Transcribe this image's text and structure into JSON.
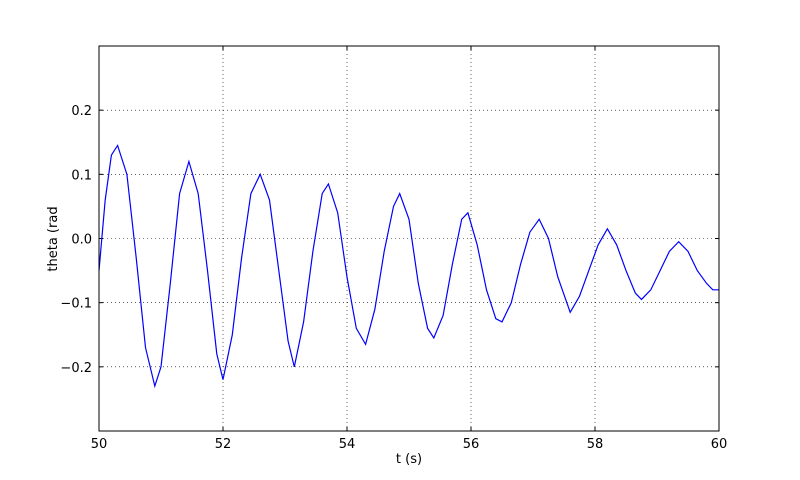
{
  "chart_data": {
    "type": "line",
    "xlabel": "t (s)",
    "ylabel": "theta (rad",
    "x": [
      50.0,
      50.1,
      50.2,
      50.3,
      50.45,
      50.6,
      50.75,
      50.9,
      51.0,
      51.15,
      51.3,
      51.45,
      51.6,
      51.75,
      51.9,
      52.0,
      52.15,
      52.3,
      52.45,
      52.6,
      52.75,
      52.9,
      53.05,
      53.15,
      53.3,
      53.45,
      53.6,
      53.7,
      53.85,
      54.0,
      54.15,
      54.3,
      54.45,
      54.6,
      54.75,
      54.85,
      55.0,
      55.15,
      55.3,
      55.4,
      55.55,
      55.7,
      55.85,
      55.95,
      56.1,
      56.25,
      56.4,
      56.5,
      56.65,
      56.8,
      56.95,
      57.1,
      57.25,
      57.4,
      57.6,
      57.75,
      57.9,
      58.05,
      58.2,
      58.35,
      58.5,
      58.65,
      58.75,
      58.9,
      59.05,
      59.2,
      59.35,
      59.5,
      59.65,
      59.8,
      59.9,
      60.0
    ],
    "series": [
      {
        "color": "#0000ff",
        "values": [
          -0.05,
          0.06,
          0.13,
          0.145,
          0.1,
          -0.03,
          -0.17,
          -0.23,
          -0.2,
          -0.07,
          0.07,
          0.12,
          0.07,
          -0.05,
          -0.18,
          -0.22,
          -0.15,
          -0.03,
          0.07,
          0.1,
          0.06,
          -0.05,
          -0.16,
          -0.2,
          -0.13,
          -0.02,
          0.07,
          0.085,
          0.04,
          -0.06,
          -0.14,
          -0.165,
          -0.11,
          -0.02,
          0.05,
          0.07,
          0.03,
          -0.07,
          -0.14,
          -0.155,
          -0.12,
          -0.04,
          0.03,
          0.04,
          -0.01,
          -0.08,
          -0.125,
          -0.13,
          -0.1,
          -0.04,
          0.01,
          0.03,
          0.0,
          -0.06,
          -0.115,
          -0.09,
          -0.05,
          -0.01,
          0.015,
          -0.01,
          -0.05,
          -0.085,
          -0.095,
          -0.08,
          -0.05,
          -0.02,
          -0.005,
          -0.02,
          -0.05,
          -0.07,
          -0.08,
          -0.08
        ]
      }
    ],
    "xlim": [
      50,
      60
    ],
    "xticks": [
      50,
      52,
      54,
      56,
      58,
      60
    ],
    "ylim": [
      -0.3,
      0.3
    ],
    "yticks": [
      {
        "value": -0.2,
        "label": "−0.2"
      },
      {
        "value": -0.1,
        "label": "−0.1"
      },
      {
        "value": 0,
        "label": "0.0"
      },
      0.1,
      0.2
    ],
    "grid": true
  }
}
